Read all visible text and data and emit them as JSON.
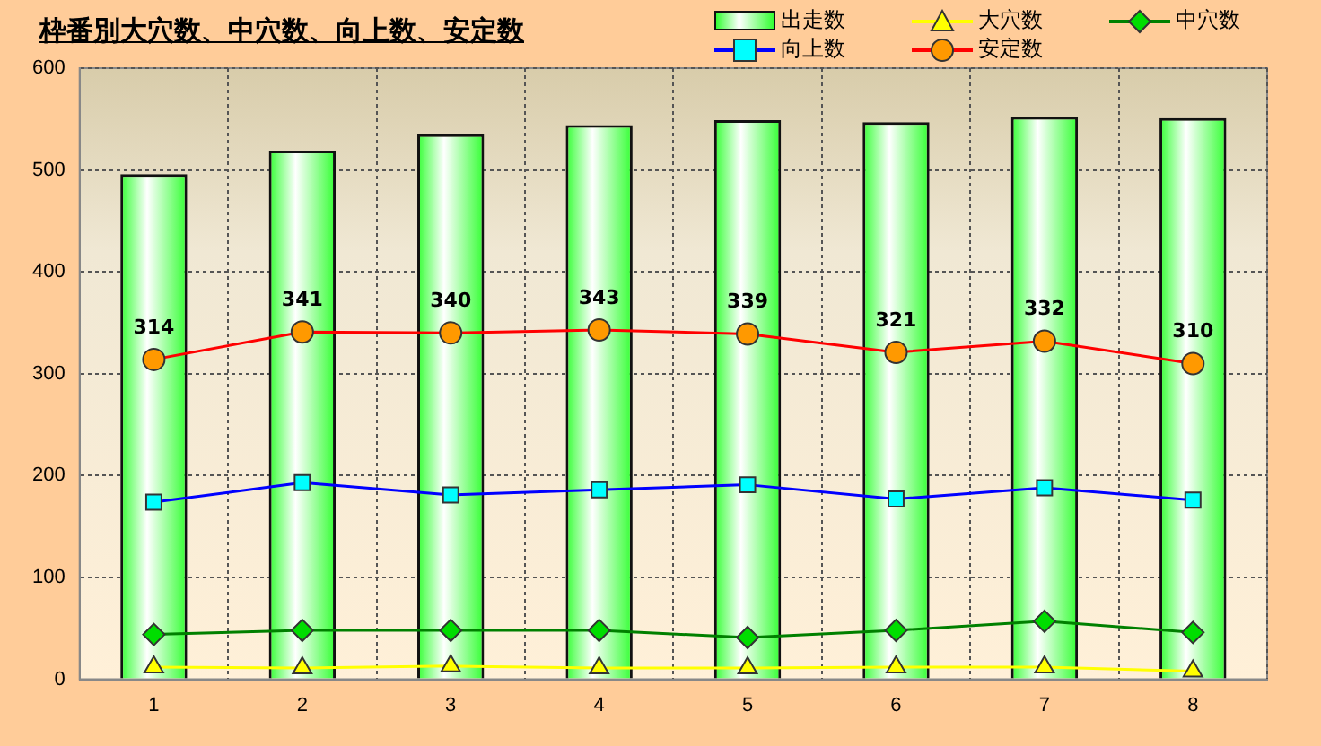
{
  "chart_data": {
    "type": "bar",
    "title": "枠番別大穴数、中穴数、向上数、安定数",
    "categories": [
      "1",
      "2",
      "3",
      "4",
      "5",
      "6",
      "7",
      "8"
    ],
    "ylim": [
      0,
      600
    ],
    "yticks": [
      0,
      100,
      200,
      300,
      400,
      500,
      600
    ],
    "grid": true,
    "legend": "top right",
    "series": [
      {
        "name": "出走数",
        "color": "#33ff33",
        "values": [
          496,
          519,
          535,
          544,
          549,
          547,
          552,
          551
        ]
      },
      {
        "name": "大穴数",
        "type": "line",
        "color": "#ffff00",
        "marker": "triangle",
        "values": [
          12,
          11,
          13,
          11,
          11,
          12,
          12,
          8
        ]
      },
      {
        "name": "中穴数",
        "type": "line",
        "color": "#008000",
        "marker": "diamond",
        "values": [
          44,
          48,
          48,
          48,
          41,
          48,
          57,
          46
        ]
      },
      {
        "name": "向上数",
        "type": "line",
        "color": "#0000ff",
        "marker": "square",
        "values": [
          174,
          193,
          181,
          186,
          191,
          177,
          188,
          176
        ]
      },
      {
        "name": "安定数",
        "type": "line",
        "color": "#ff0000",
        "marker": "circle",
        "values": [
          314,
          341,
          340,
          343,
          339,
          321,
          332,
          310
        ],
        "value_labels": [
          "314",
          "341",
          "340",
          "343",
          "339",
          "321",
          "332",
          "310"
        ]
      }
    ]
  }
}
